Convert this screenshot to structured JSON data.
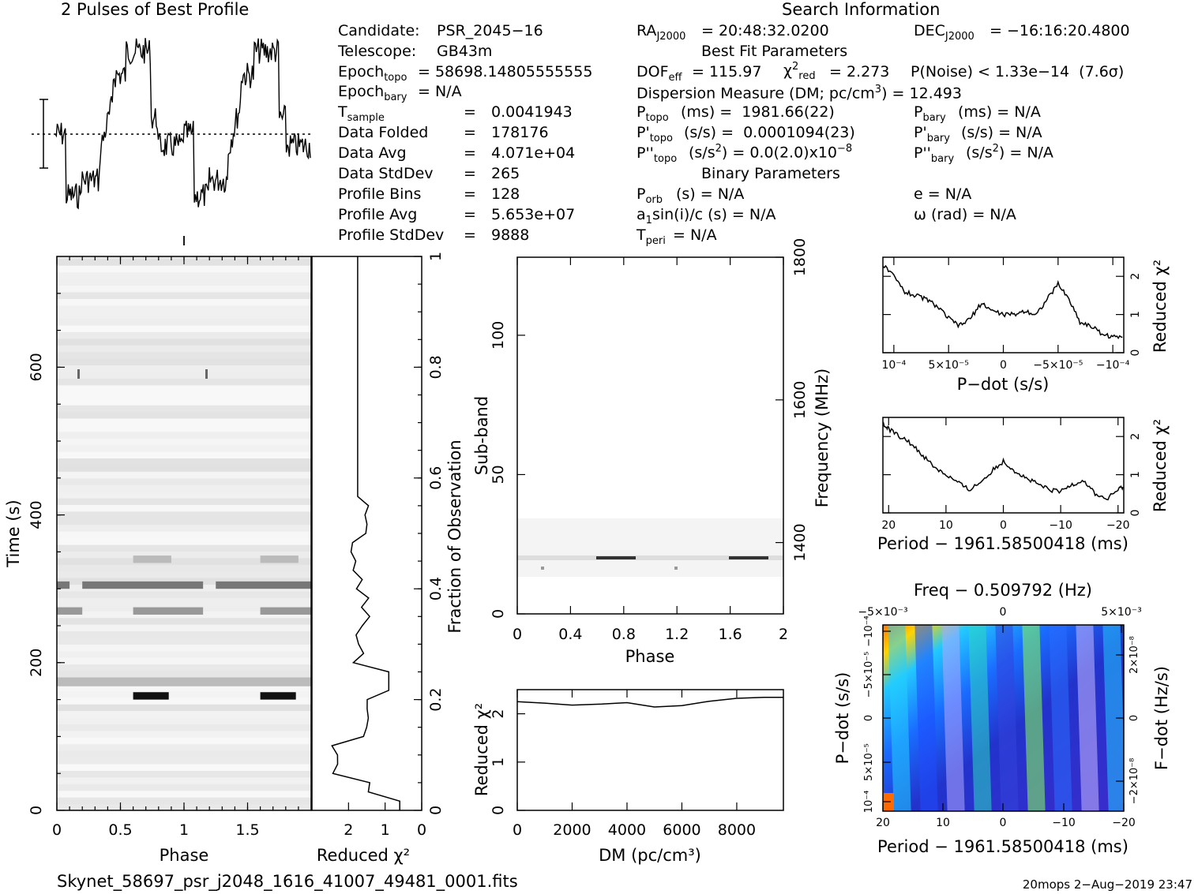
{
  "chart_data": [
    {
      "id": "pulse_profile",
      "type": "line",
      "title": "2 Pulses of Best Profile",
      "xlabel": "",
      "ylabel": "",
      "pulses": 2,
      "profile_bins": 128,
      "note_shape": "two pulses, each with low region near phase 0.1-0.35 and high plateau around phase 0.45-0.75"
    },
    {
      "id": "time_phase",
      "type": "heatmap",
      "xlabel": "Phase",
      "ylabel": "Time (s)",
      "xticks": [
        "0",
        "0.5",
        "1",
        "1.5"
      ],
      "yticks": [
        "0",
        "200",
        "400",
        "600"
      ],
      "xlim": [
        0,
        2
      ],
      "ylim": [
        0,
        750
      ],
      "dark_bands_time_s": [
        160,
        180,
        275,
        310,
        345
      ]
    },
    {
      "id": "time_reduced_chi2",
      "type": "line",
      "xlabel": "Reduced χ²",
      "ylabel": "Fraction of Observation",
      "xticks": [
        "2",
        "1",
        "0"
      ],
      "yticks": [
        "0",
        "0.2",
        "0.4",
        "0.6",
        "0.8",
        "1"
      ],
      "xlim": [
        3,
        0
      ],
      "ylim": [
        0,
        1
      ]
    },
    {
      "id": "subband_phase",
      "type": "heatmap",
      "xlabel": "Phase",
      "ylabel": "Sub-band",
      "ylabel_right": "Frequency (MHz)",
      "xticks": [
        "0",
        "0.4",
        "0.8",
        "1.2",
        "1.6",
        "2"
      ],
      "yticks": [
        "0",
        "50",
        "100"
      ],
      "yticks_right": [
        "1400",
        "1600",
        "1800"
      ],
      "xlim": [
        0,
        2
      ],
      "ylim": [
        0,
        128
      ]
    },
    {
      "id": "dm_chi2",
      "type": "line",
      "xlabel": "DM (pc/cm³)",
      "ylabel": "Reduced χ²",
      "xticks": [
        "0",
        "2000",
        "4000",
        "6000",
        "8000"
      ],
      "yticks": [
        "0",
        "1",
        "2"
      ],
      "xlim": [
        0,
        9700
      ],
      "ylim": [
        0,
        2.5
      ],
      "x": [
        0,
        1000,
        2000,
        3000,
        4000,
        5000,
        6000,
        7000,
        8000,
        9000,
        9700
      ],
      "y": [
        2.25,
        2.22,
        2.18,
        2.2,
        2.23,
        2.14,
        2.17,
        2.26,
        2.32,
        2.34,
        2.34
      ]
    },
    {
      "id": "pdot_chi2",
      "type": "line",
      "xlabel": "P−dot (s/s)",
      "ylabel": "Reduced χ²",
      "xticks": [
        "10⁻⁴",
        "5×10⁻⁵",
        "0",
        "−5×10⁻⁵",
        "−10⁻⁴"
      ],
      "yticks": [
        "0",
        "1",
        "2"
      ],
      "xlim": [
        0.00011,
        -0.00011
      ],
      "ylim": [
        0,
        2.5
      ],
      "x": [
        0.00011,
        0.0001,
        9e-05,
        8e-05,
        7e-05,
        6e-05,
        5e-05,
        4e-05,
        3e-05,
        2e-05,
        1e-05,
        0,
        -1e-05,
        -2e-05,
        -3e-05,
        -4e-05,
        -5e-05,
        -6e-05,
        -7e-05,
        -8e-05,
        -9e-05,
        -0.0001,
        -0.00011
      ],
      "y": [
        2.3,
        2.0,
        1.6,
        1.5,
        1.4,
        1.2,
        0.9,
        0.7,
        0.9,
        1.3,
        1.1,
        1.0,
        1.0,
        1.1,
        1.0,
        1.4,
        1.8,
        1.4,
        0.8,
        0.7,
        0.5,
        0.4,
        0.45
      ]
    },
    {
      "id": "period_chi2",
      "type": "line",
      "xlabel": "Period − 1961.58500418 (ms)",
      "ylabel": "Reduced χ²",
      "xticks": [
        "20",
        "10",
        "0",
        "−10",
        "−20"
      ],
      "yticks": [
        "0",
        "1",
        "2"
      ],
      "xlim": [
        21,
        -21
      ],
      "ylim": [
        0,
        2.5
      ],
      "x": [
        21,
        20,
        18,
        16,
        14,
        12,
        10,
        8,
        6,
        4,
        2,
        0,
        -2,
        -4,
        -6,
        -8,
        -10,
        -12,
        -14,
        -16,
        -18,
        -20,
        -21
      ],
      "y": [
        2.3,
        2.2,
        2.0,
        1.8,
        1.5,
        1.2,
        1.0,
        0.8,
        0.6,
        0.8,
        1.1,
        1.35,
        1.1,
        0.9,
        0.75,
        0.6,
        0.55,
        0.75,
        0.85,
        0.5,
        0.35,
        0.6,
        0.7
      ]
    },
    {
      "id": "period_pdot_map",
      "type": "heatmap",
      "title": "Freq − 0.509792 (Hz)",
      "xlabel": "Period − 1961.58500418 (ms)",
      "ylabel": "P−dot (s/s)",
      "ylabel_right": "F−dot (Hz/s)",
      "xticks": [
        "20",
        "10",
        "0",
        "−10",
        "−20"
      ],
      "xticks_top": [
        "−5×10⁻³",
        "0",
        "5×10⁻³"
      ],
      "yticks": [
        "10⁻⁴",
        "5×10⁻⁵",
        "0",
        "−5×10⁻⁵",
        "−10⁻⁴"
      ],
      "yticks_right": [
        "−2×10⁻⁸",
        "0",
        "2×10⁻⁸"
      ]
    }
  ],
  "info": {
    "header": "Search Information",
    "candidate_label": "Candidate:",
    "candidate": "PSR_2045−16",
    "telescope_label": "Telescope:",
    "telescope": "GB43m",
    "epoch_topo": "= 58698.14805555555",
    "epoch_bary": "= N/A",
    "tsample": "0.0041943",
    "data_folded": "178176",
    "data_avg": "4.071e+04",
    "data_stddev": "265",
    "profile_bins": "128",
    "profile_avg": "5.653e+07",
    "profile_stddev": "9888",
    "labels": {
      "tsample": "T",
      "tsample_sub": "sample",
      "data_folded": "Data Folded",
      "data_avg": "Data Avg",
      "data_stddev": "Data StdDev",
      "profile_bins": "Profile Bins",
      "profile_avg": "Profile Avg",
      "profile_stddev": "Profile StdDev",
      "eq": "="
    },
    "ra": "= 20:48:32.0200",
    "dec": "= −16:16:20.4800",
    "best_fit_header": "Best Fit Parameters",
    "dof_eff": "= 115.97",
    "chi2_red": "= 2.273",
    "pnoise": "P(Noise) < 1.33e−14  (7.6σ)",
    "dm_label": "Dispersion Measure (DM; pc/cm",
    "dm_value": ") = 12.493",
    "ptopo": "(ms) =  1981.66(22)",
    "pdtopo": "(s/s) =  0.0001094(23)",
    "pddtopo_a": "(s/s",
    "pddtopo_b": ") = 0.0(2.0)x10",
    "pbary": "(ms) = N/A",
    "pdbary": "(s/s) = N/A",
    "pddbary_a": "(s/s",
    "pddbary_b": ") = N/A",
    "binary_header": "Binary Parameters",
    "porb": "(s) = N/A",
    "a1sini": "a",
    "a1sini_b": "sin(i)/c (s) = N/A",
    "tperi": "= N/A",
    "e": "e = N/A",
    "omega": "ω (rad) = N/A"
  },
  "footer": {
    "filename": "Skynet_58697_psr_j2048_1616_41007_49481_0001.fits",
    "stamp": "20mops   2−Aug−2019 23:47"
  }
}
